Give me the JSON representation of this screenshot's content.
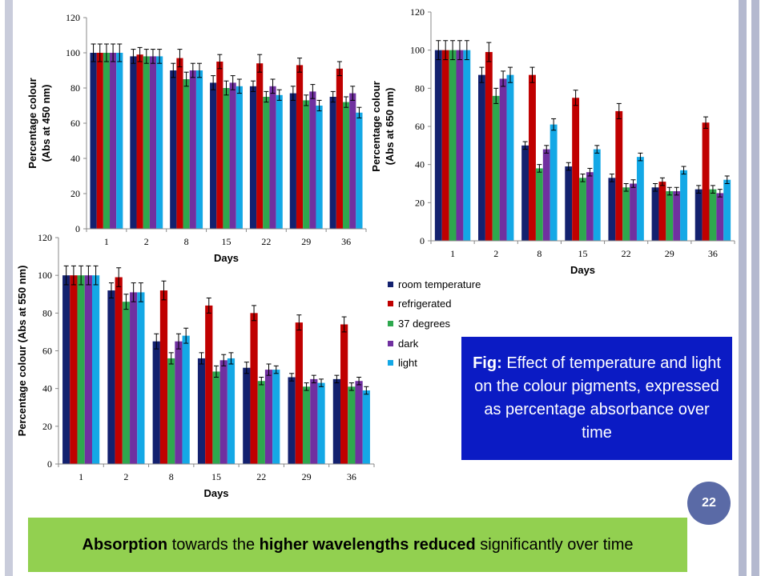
{
  "theme": {
    "frame_left_color": "#c9ccdb",
    "frame_right_color": "#b4b9cf",
    "fig_box_color": "#0b1bc4",
    "bottom_box_color": "#92d050",
    "badge_color": "#5a6aa6"
  },
  "legend": [
    {
      "name": "room temperature",
      "color": "#13216f"
    },
    {
      "name": "refrigerated",
      "color": "#c00000"
    },
    {
      "name": "37 degrees",
      "color": "#2ea84e"
    },
    {
      "name": "dark",
      "color": "#7030a0"
    },
    {
      "name": "light",
      "color": "#14a8e6"
    }
  ],
  "figure_caption": {
    "prefix": "Fig:",
    "text": "Effect of temperature and light on the colour pigments, expressed as percentage absorbance over time"
  },
  "page_number": "22",
  "conclusion": {
    "part1": "Absorption",
    "part2": " towards the ",
    "part3": "higher wavelengths reduced",
    "part4": " significantly over time"
  },
  "chart_data": [
    {
      "type": "bar",
      "ylabel": "Percentage colour (Abs at 450 nm)",
      "ylabel_lines": [
        "Percentage colour",
        "(Abs at 450 nm)"
      ],
      "xlabel": "Days",
      "categories": [
        "1",
        "2",
        "8",
        "15",
        "22",
        "29",
        "36"
      ],
      "ylim": [
        0,
        120
      ],
      "yticks": [
        0,
        20,
        40,
        60,
        80,
        100,
        120
      ],
      "grid": false,
      "series": [
        {
          "name": "room temperature",
          "values": [
            100,
            98,
            90,
            83,
            81,
            77,
            75
          ],
          "errors": [
            5,
            4,
            4,
            4,
            3,
            4,
            3
          ]
        },
        {
          "name": "refrigerated",
          "values": [
            100,
            99,
            97,
            95,
            94,
            93,
            91
          ],
          "errors": [
            5,
            4,
            5,
            4,
            5,
            4,
            4
          ]
        },
        {
          "name": "37 degrees",
          "values": [
            100,
            98,
            85,
            80,
            75,
            73,
            72
          ],
          "errors": [
            5,
            4,
            4,
            4,
            3,
            3,
            3
          ]
        },
        {
          "name": "dark",
          "values": [
            100,
            98,
            90,
            83,
            81,
            78,
            77
          ],
          "errors": [
            5,
            4,
            4,
            4,
            4,
            4,
            4
          ]
        },
        {
          "name": "light",
          "values": [
            100,
            98,
            90,
            81,
            76,
            70,
            66
          ],
          "errors": [
            5,
            4,
            4,
            4,
            3,
            3,
            3
          ]
        }
      ]
    },
    {
      "type": "bar",
      "ylabel": "Percentage colour (Abs at 650 nm)",
      "ylabel_lines": [
        "Percentage colour",
        "(Abs at 650 nm)"
      ],
      "xlabel": "Days",
      "categories": [
        "1",
        "2",
        "8",
        "15",
        "22",
        "29",
        "36"
      ],
      "ylim": [
        0,
        120
      ],
      "yticks": [
        0,
        20,
        40,
        60,
        80,
        100,
        120
      ],
      "grid": false,
      "series": [
        {
          "name": "room temperature",
          "values": [
            100,
            87,
            50,
            39,
            33,
            28,
            27
          ],
          "errors": [
            5,
            4,
            2,
            2,
            2,
            2,
            2
          ]
        },
        {
          "name": "refrigerated",
          "values": [
            100,
            99,
            87,
            75,
            68,
            31,
            62
          ],
          "errors": [
            5,
            5,
            4,
            4,
            4,
            2,
            3
          ]
        },
        {
          "name": "37 degrees",
          "values": [
            100,
            76,
            38,
            33,
            28,
            26,
            27
          ],
          "errors": [
            5,
            4,
            2,
            2,
            2,
            2,
            2
          ]
        },
        {
          "name": "dark",
          "values": [
            100,
            85,
            48,
            36,
            30,
            26,
            25
          ],
          "errors": [
            5,
            4,
            2,
            2,
            2,
            2,
            2
          ]
        },
        {
          "name": "light",
          "values": [
            100,
            87,
            61,
            48,
            44,
            37,
            32
          ],
          "errors": [
            5,
            4,
            3,
            2,
            2,
            2,
            2
          ]
        }
      ]
    },
    {
      "type": "bar",
      "ylabel": "Percentage colour (Abs at 550 nm)",
      "ylabel_lines": [
        "Percentage colour (Abs at 550 nm)"
      ],
      "xlabel": "Days",
      "categories": [
        "1",
        "2",
        "8",
        "15",
        "22",
        "29",
        "36"
      ],
      "ylim": [
        0,
        120
      ],
      "yticks": [
        0,
        20,
        40,
        60,
        80,
        100,
        120
      ],
      "grid": false,
      "series": [
        {
          "name": "room temperature",
          "values": [
            100,
            92,
            65,
            56,
            51,
            46,
            45
          ],
          "errors": [
            5,
            4,
            4,
            3,
            3,
            2,
            2
          ]
        },
        {
          "name": "refrigerated",
          "values": [
            100,
            99,
            92,
            84,
            80,
            75,
            74
          ],
          "errors": [
            5,
            5,
            5,
            4,
            4,
            4,
            4
          ]
        },
        {
          "name": "37 degrees",
          "values": [
            100,
            86,
            56,
            49,
            44,
            41,
            41
          ],
          "errors": [
            5,
            4,
            3,
            3,
            2,
            2,
            2
          ]
        },
        {
          "name": "dark",
          "values": [
            100,
            91,
            65,
            55,
            50,
            45,
            44
          ],
          "errors": [
            5,
            5,
            4,
            3,
            3,
            2,
            2
          ]
        },
        {
          "name": "light",
          "values": [
            100,
            91,
            68,
            56,
            50,
            43,
            39
          ],
          "errors": [
            5,
            5,
            4,
            3,
            2,
            2,
            2
          ]
        }
      ]
    }
  ]
}
